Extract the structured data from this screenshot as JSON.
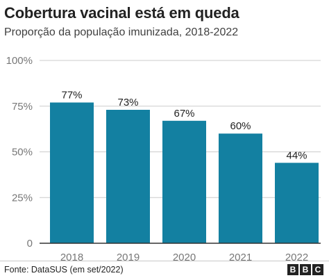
{
  "header": {
    "title": "Cobertura vacinal está em queda",
    "subtitle": "Proporção da população imunizada, 2018-2022"
  },
  "footer": {
    "source": "Fonte: DataSUS (em set/2022)",
    "logo_letters": [
      "B",
      "B",
      "C"
    ]
  },
  "colors": {
    "bar": "#1380A1",
    "text": "#222222",
    "grid": "#cccccc",
    "tick_label": "#777777",
    "baseline": "#333333"
  },
  "chart_data": {
    "type": "bar",
    "title": "Cobertura vacinal está em queda",
    "subtitle": "Proporção da população imunizada, 2018-2022",
    "categories": [
      "2018",
      "2019",
      "2020",
      "2021",
      "2022"
    ],
    "values": [
      77,
      73,
      67,
      60,
      44
    ],
    "data_labels": [
      "77%",
      "73%",
      "67%",
      "60%",
      "44%"
    ],
    "ylim": [
      0,
      100
    ],
    "yticks": [
      0,
      25,
      50,
      75,
      100
    ],
    "ytick_labels": [
      "0",
      "25%",
      "50%",
      "75%",
      "100%"
    ],
    "xlabel": "",
    "ylabel": "",
    "grid": true,
    "legend": "none"
  }
}
